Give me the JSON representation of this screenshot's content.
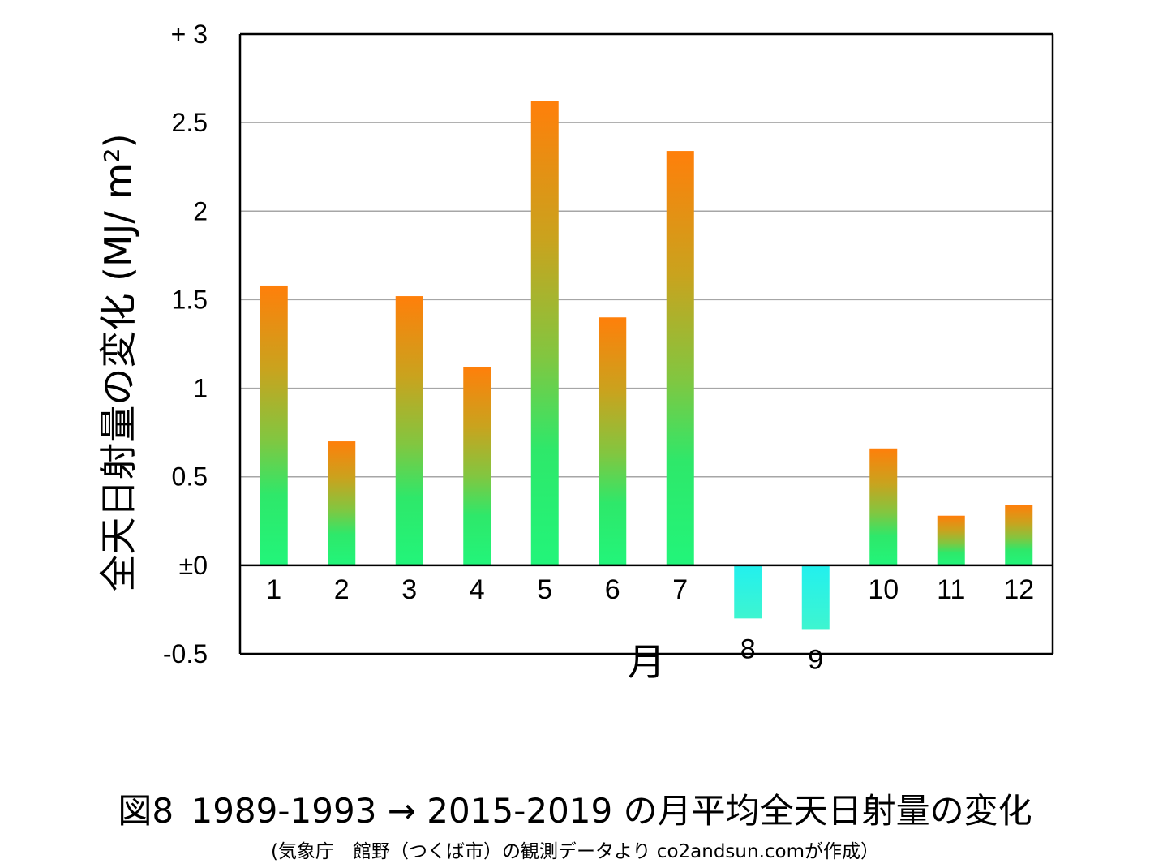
{
  "chart_data": {
    "type": "bar",
    "title_prefix": "図8",
    "title": "1989-1993 → 2015-2019 の月平均全天日射量の変化",
    "subtitle": "(気象庁　館野（つくば市）の観測データより co2andsun.comが作成）",
    "ylabel": "全天日射量の変化 (MJ/ m²)",
    "xlabel": "月",
    "categories": [
      "1",
      "2",
      "3",
      "4",
      "5",
      "6",
      "7",
      "8",
      "9",
      "10",
      "11",
      "12"
    ],
    "values": [
      1.58,
      0.7,
      1.52,
      1.12,
      2.62,
      1.4,
      2.34,
      -0.3,
      -0.36,
      0.66,
      0.28,
      0.34
    ],
    "ylim": [
      -0.5,
      3
    ],
    "yticks": [
      {
        "value": 3,
        "label": "+ 3"
      },
      {
        "value": 2.5,
        "label": "2.5"
      },
      {
        "value": 2,
        "label": "2"
      },
      {
        "value": 1.5,
        "label": "1.5"
      },
      {
        "value": 1,
        "label": "1"
      },
      {
        "value": 0.5,
        "label": "0.5"
      },
      {
        "value": 0,
        "label": "±0"
      },
      {
        "value": -0.5,
        "label": "-0.5"
      }
    ],
    "grid": true,
    "legend": "none",
    "colors": {
      "positive_top": "#ff7f0a",
      "positive_mid": "#8fc23a",
      "positive_base": "#22f57a",
      "negative": "#2ef2de",
      "grid": "#a6a6a6",
      "axis": "#000000"
    }
  }
}
